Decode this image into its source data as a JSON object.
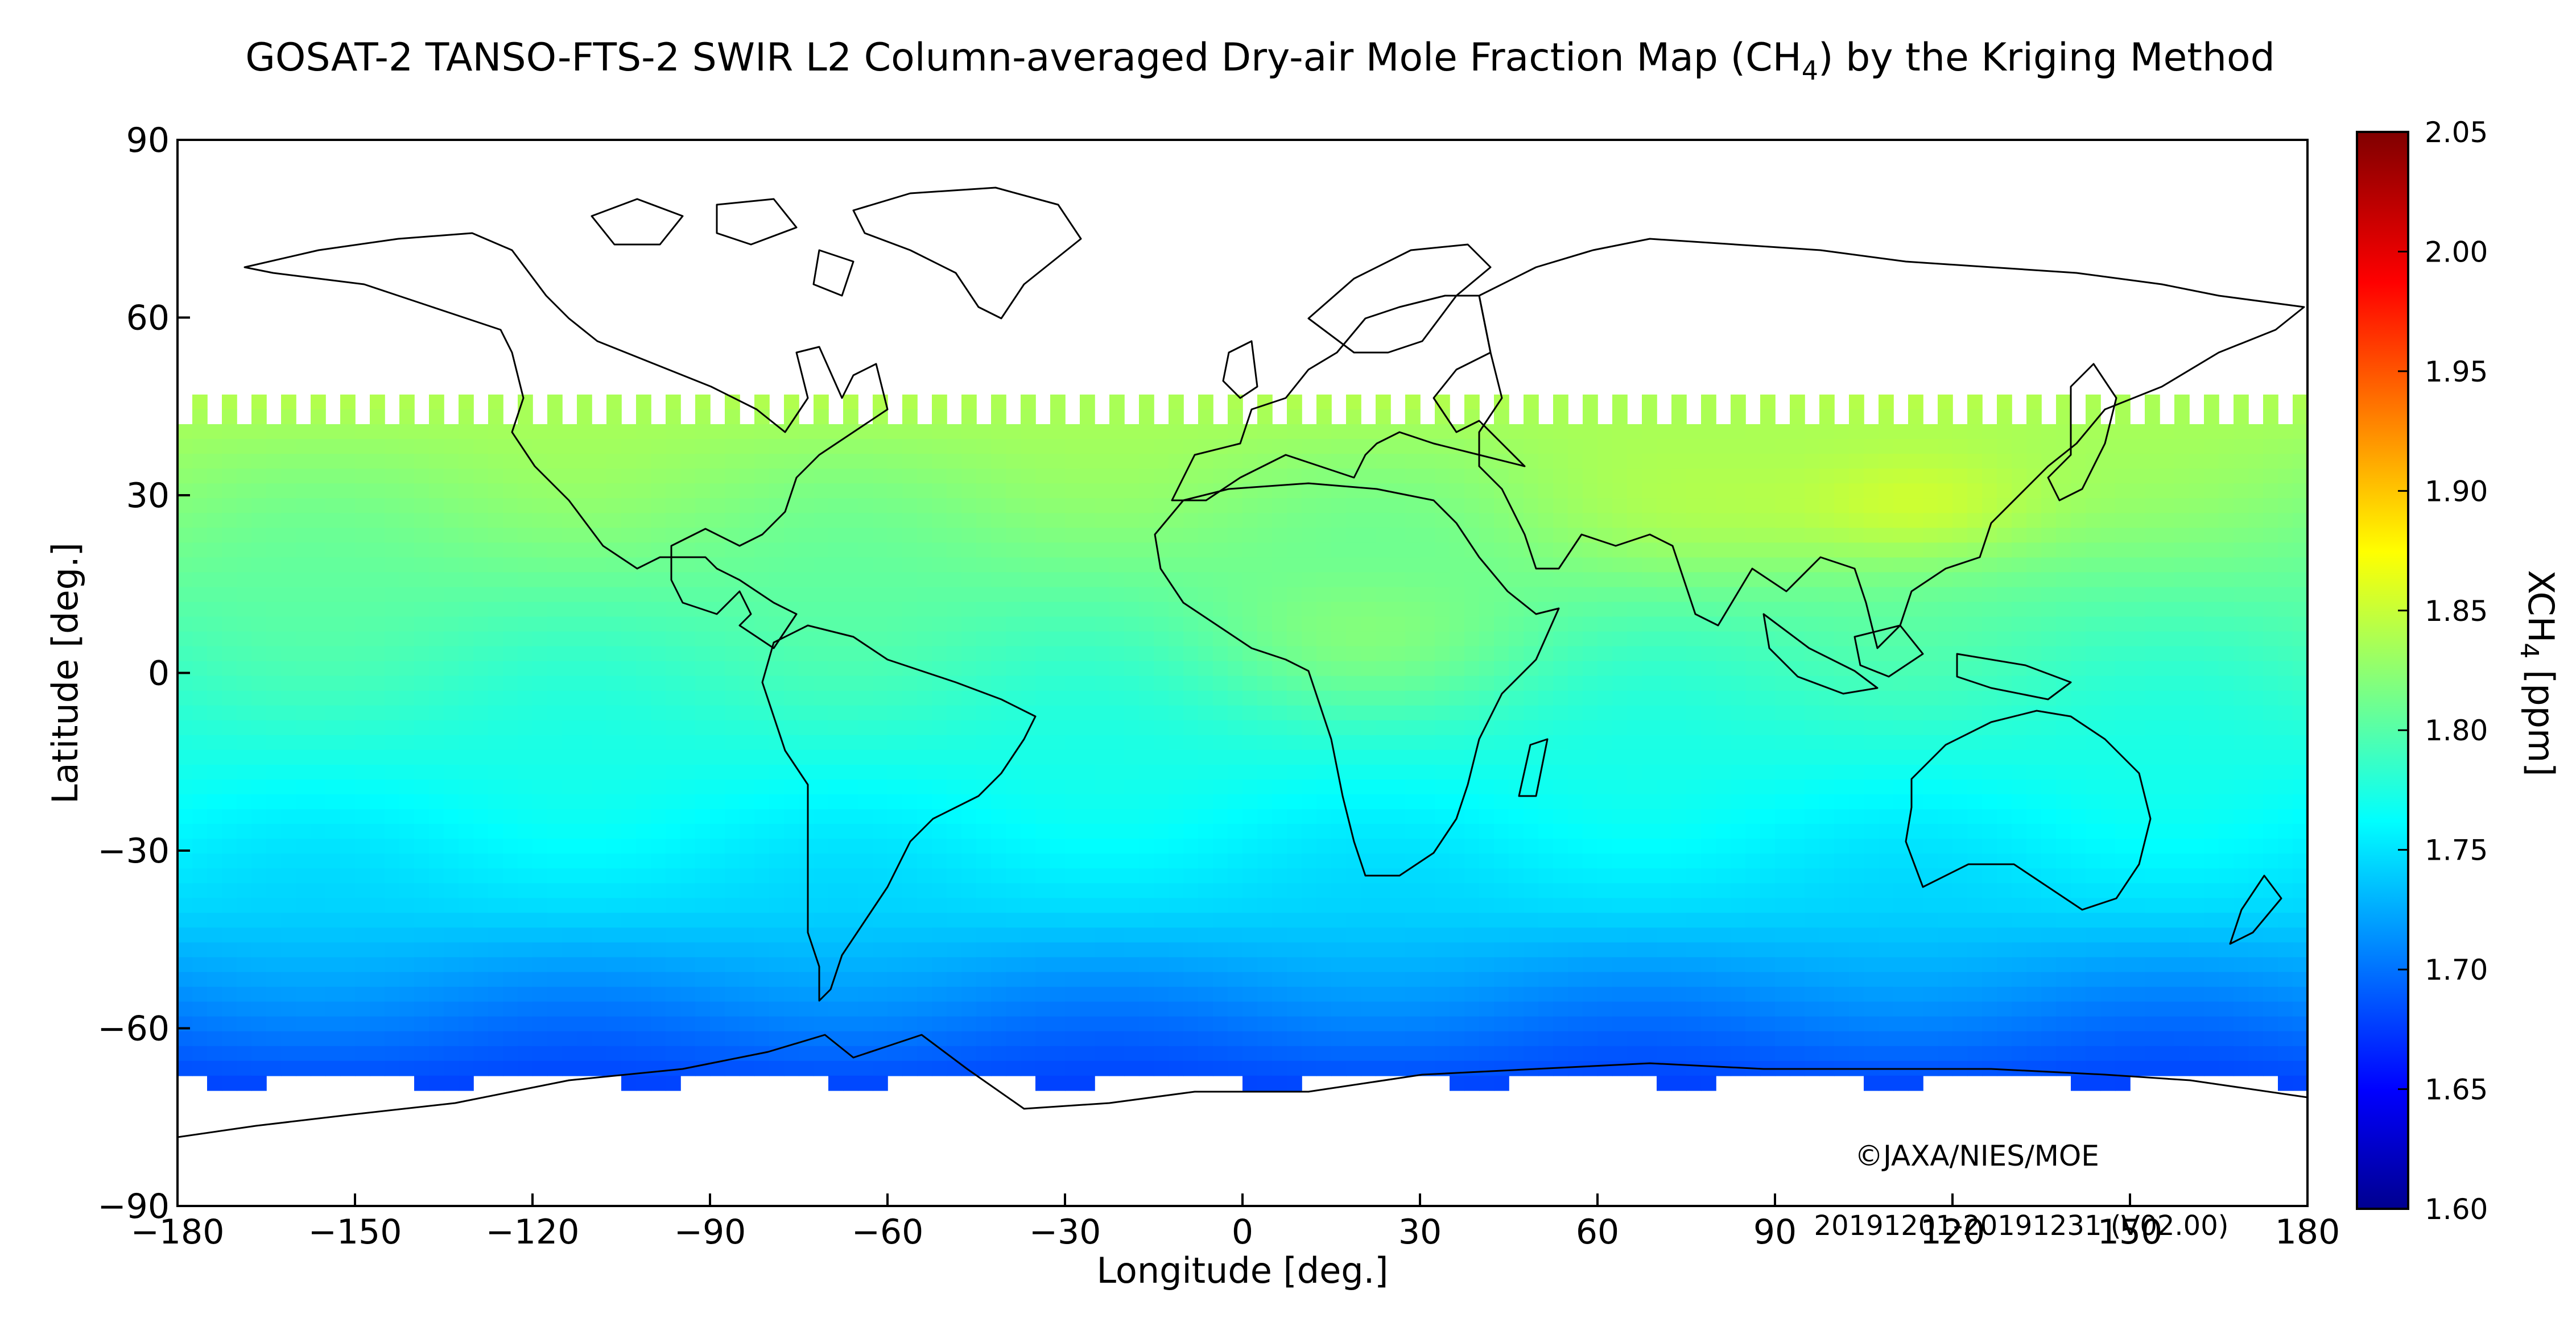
{
  "title_main": "GOSAT-2 TANSO-FTS-2 SWIR L2 Column-averaged Dry-air Mole Fraction Map (CH",
  "title_sub": "4",
  "title_end": ") by the Kriging Method",
  "chart_data": {
    "type": "heatmap",
    "xlabel": "Longitude [deg.]",
    "ylabel": "Latitude [deg.]",
    "xlim": [
      -180,
      180
    ],
    "ylim": [
      -90,
      90
    ],
    "x_ticks": [
      "−180",
      "−150",
      "−120",
      "−90",
      "−60",
      "−30",
      "0",
      "30",
      "60",
      "90",
      "120",
      "150",
      "180"
    ],
    "y_ticks": [
      "90",
      "60",
      "30",
      "0",
      "−30",
      "−60",
      "−90"
    ],
    "colorbar": {
      "label": "XCH",
      "label_sub": "4",
      "label_end": " [ppm]",
      "range": [
        1.6,
        2.05
      ],
      "ticks": [
        "2.05",
        "2.00",
        "1.95",
        "1.90",
        "1.85",
        "1.80",
        "1.75",
        "1.70",
        "1.65",
        "1.60"
      ],
      "colormap": "jet"
    },
    "data_latitude_extent": [
      -66,
      47
    ]
  },
  "credit": "©JAXA/NIES/MOE",
  "date_range": "20191201-20191231 (V02.00)"
}
